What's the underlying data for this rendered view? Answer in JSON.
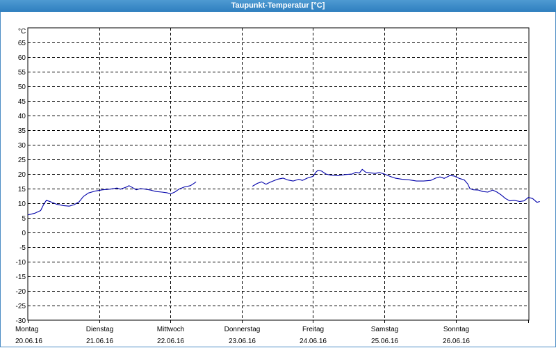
{
  "window": {
    "title": "Taupunkt-Temperatur [°C]"
  },
  "chart_data": {
    "type": "line",
    "title": "Taupunkt-Temperatur [°C]",
    "ylabel": "°C",
    "ylim": [
      -30,
      70
    ],
    "yticks": [
      65,
      60,
      55,
      50,
      45,
      40,
      35,
      30,
      25,
      20,
      15,
      10,
      5,
      0,
      -5,
      -10,
      -15,
      -20,
      -25,
      -30
    ],
    "xlim": [
      0,
      7
    ],
    "x_unit": "days since Montag 20.06.16 00:00",
    "xticks": [
      {
        "day": "Montag",
        "date": "20.06.16"
      },
      {
        "day": "Dienstag",
        "date": "21.06.16"
      },
      {
        "day": "Mittwoch",
        "date": "22.06.16"
      },
      {
        "day": "Donnerstag",
        "date": "23.06.16"
      },
      {
        "day": "Freitag",
        "date": "24.06.16"
      },
      {
        "day": "Samstag",
        "date": "25.06.16"
      },
      {
        "day": "Sonntag",
        "date": "26.06.16"
      }
    ],
    "grid": true,
    "series": [
      {
        "color": "#0000aa",
        "segments": [
          [
            [
              0,
              6.0
            ],
            [
              0.1,
              6.6
            ],
            [
              0.18,
              7.5
            ],
            [
              0.22,
              9.5
            ],
            [
              0.26,
              11.0
            ],
            [
              0.32,
              10.5
            ],
            [
              0.4,
              9.7
            ],
            [
              0.5,
              9.2
            ],
            [
              0.58,
              9.0
            ],
            [
              0.65,
              9.5
            ],
            [
              0.72,
              10.5
            ],
            [
              0.78,
              12.3
            ],
            [
              0.85,
              13.5
            ],
            [
              0.95,
              14.2
            ],
            [
              1.05,
              14.6
            ],
            [
              1.15,
              14.8
            ],
            [
              1.25,
              15.2
            ],
            [
              1.3,
              14.8
            ],
            [
              1.38,
              15.5
            ],
            [
              1.42,
              16.0
            ],
            [
              1.48,
              15.2
            ],
            [
              1.52,
              14.6
            ],
            [
              1.58,
              15.0
            ],
            [
              1.65,
              14.8
            ],
            [
              1.72,
              14.5
            ],
            [
              1.8,
              14.0
            ],
            [
              1.88,
              13.8
            ],
            [
              1.95,
              13.6
            ],
            [
              2.0,
              13.2
            ],
            [
              2.06,
              13.8
            ],
            [
              2.12,
              14.8
            ],
            [
              2.2,
              15.6
            ],
            [
              2.28,
              16.0
            ],
            [
              2.33,
              16.8
            ],
            [
              2.36,
              17.3
            ]
          ],
          [
            [
              3.15,
              15.8
            ],
            [
              3.22,
              16.8
            ],
            [
              3.28,
              17.3
            ],
            [
              3.34,
              16.5
            ],
            [
              3.4,
              17.2
            ],
            [
              3.5,
              18.2
            ],
            [
              3.58,
              18.6
            ],
            [
              3.64,
              18.0
            ],
            [
              3.72,
              17.6
            ],
            [
              3.8,
              18.2
            ],
            [
              3.85,
              17.8
            ],
            [
              3.92,
              18.6
            ],
            [
              4.0,
              19.2
            ],
            [
              4.04,
              20.6
            ],
            [
              4.07,
              21.3
            ],
            [
              4.12,
              21.0
            ],
            [
              4.18,
              20.0
            ],
            [
              4.25,
              19.6
            ],
            [
              4.35,
              19.4
            ],
            [
              4.45,
              19.8
            ],
            [
              4.55,
              20.0
            ],
            [
              4.6,
              20.6
            ],
            [
              4.65,
              20.3
            ],
            [
              4.69,
              21.6
            ],
            [
              4.74,
              20.6
            ],
            [
              4.8,
              20.4
            ],
            [
              4.87,
              20.2
            ],
            [
              4.93,
              20.5
            ],
            [
              5.0,
              20.0
            ],
            [
              5.08,
              19.2
            ],
            [
              5.15,
              18.6
            ],
            [
              5.25,
              18.2
            ],
            [
              5.35,
              18.0
            ],
            [
              5.45,
              17.6
            ],
            [
              5.55,
              17.6
            ],
            [
              5.65,
              17.8
            ],
            [
              5.72,
              18.6
            ],
            [
              5.78,
              19.0
            ],
            [
              5.84,
              18.5
            ],
            [
              5.92,
              19.5
            ],
            [
              5.98,
              19.3
            ],
            [
              6.05,
              18.5
            ],
            [
              6.12,
              18.0
            ],
            [
              6.17,
              16.6
            ],
            [
              6.2,
              15.0
            ],
            [
              6.25,
              14.6
            ],
            [
              6.32,
              14.5
            ],
            [
              6.38,
              14.0
            ],
            [
              6.45,
              13.8
            ],
            [
              6.52,
              14.5
            ],
            [
              6.58,
              13.8
            ],
            [
              6.64,
              12.8
            ],
            [
              6.7,
              11.6
            ],
            [
              6.76,
              10.8
            ],
            [
              6.82,
              11.0
            ],
            [
              6.9,
              10.6
            ],
            [
              6.96,
              10.8
            ],
            [
              7.02,
              12.0
            ],
            [
              7.08,
              11.6
            ],
            [
              7.14,
              10.3
            ],
            [
              7.18,
              10.6
            ]
          ]
        ]
      }
    ]
  }
}
